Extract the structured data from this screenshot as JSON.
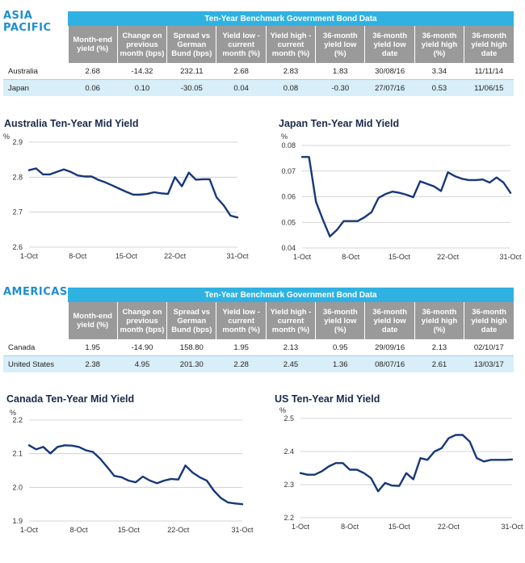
{
  "colors": {
    "accent": "#1e8fd0",
    "table_title_bg": "#2fb2e2",
    "table_header_bg": "#9a9a9a",
    "alt_row": "#d8eef8",
    "line": "#17377a"
  },
  "sections": [
    {
      "region_lines": [
        "ASIA",
        "PACIFIC"
      ],
      "table_title": "Ten-Year Benchmark Government Bond Data",
      "headers": [
        "Month-end yield (%)",
        "Change on previous month (bps)",
        "Spread vs German Bund (bps)",
        "Yield low - current month (%)",
        "Yield high - current month (%)",
        "36-month yield low (%)",
        "36-month yield low date",
        "36-month yield high (%)",
        "36-month yield high date"
      ],
      "rows": [
        {
          "name": "Australia",
          "cells": [
            "2.68",
            "-14.32",
            "232.11",
            "2.68",
            "2.83",
            "1.83",
            "30/08/16",
            "3.34",
            "11/11/14"
          ]
        },
        {
          "name": "Japan",
          "cells": [
            "0.06",
            "0.10",
            "-30.05",
            "0.04",
            "0.08",
            "-0.30",
            "27/07/16",
            "0.53",
            "11/06/15"
          ]
        }
      ]
    },
    {
      "region_lines": [
        "AMERICAS"
      ],
      "table_title": "Ten-Year Benchmark Government Bond Data",
      "headers": [
        "Month-end yield (%)",
        "Change on previous month (bps)",
        "Spread vs German Bund (bps)",
        "Yield low - current month (%)",
        "Yield high - current month (%)",
        "36-month yield low (%)",
        "36-month yield low date",
        "36-month yield high (%)",
        "36-month yield high date"
      ],
      "rows": [
        {
          "name": "Canada",
          "cells": [
            "1.95",
            "-14.90",
            "158.80",
            "1.95",
            "2.13",
            "0.95",
            "29/09/16",
            "2.13",
            "02/10/17"
          ]
        },
        {
          "name": "United States",
          "cells": [
            "2.38",
            "4.95",
            "201.30",
            "2.28",
            "2.45",
            "1.36",
            "08/07/16",
            "2.61",
            "13/03/17"
          ]
        }
      ]
    }
  ],
  "chart_data": [
    {
      "type": "line",
      "title": "Australia Ten-Year Mid Yield",
      "ylabel": "%",
      "ylim": [
        2.6,
        2.9
      ],
      "yticks": [
        "2.9",
        "2.8",
        "2.7",
        "2.6"
      ],
      "xticks": [
        "1-Oct",
        "8-Oct",
        "15-Oct",
        "22-Oct",
        "31-Oct"
      ],
      "xtick_days": [
        1,
        8,
        15,
        22,
        31
      ],
      "xlim": [
        1,
        31
      ],
      "x": [
        1,
        2,
        3,
        4,
        5,
        6,
        7,
        8,
        9,
        10,
        11,
        12,
        13,
        14,
        15,
        16,
        17,
        18,
        19,
        20,
        21,
        22,
        23,
        24,
        25,
        26,
        27,
        28,
        29,
        30,
        31
      ],
      "values": [
        2.82,
        2.825,
        2.808,
        2.808,
        2.815,
        2.822,
        2.815,
        2.805,
        2.802,
        2.802,
        2.792,
        2.785,
        2.776,
        2.767,
        2.758,
        2.75,
        2.75,
        2.752,
        2.757,
        2.754,
        2.752,
        2.8,
        2.774,
        2.813,
        2.793,
        2.794,
        2.794,
        2.742,
        2.72,
        2.69,
        2.685
      ]
    },
    {
      "type": "line",
      "title": "Japan Ten-Year Mid Yield",
      "ylabel": "%",
      "ylim": [
        0.04,
        0.08
      ],
      "yticks": [
        "0.08",
        "0.07",
        "0.06",
        "0.05",
        "0.04"
      ],
      "xticks": [
        "1-Oct",
        "8-Oct",
        "15-Oct",
        "22-Oct",
        "31-Oct"
      ],
      "xtick_days": [
        1,
        8,
        15,
        22,
        31
      ],
      "xlim": [
        1,
        31
      ],
      "x": [
        1,
        2,
        3,
        4,
        5,
        6,
        7,
        8,
        9,
        10,
        11,
        12,
        13,
        14,
        15,
        16,
        17,
        18,
        19,
        20,
        21,
        22,
        23,
        24,
        25,
        26,
        27,
        28,
        29,
        30,
        31
      ],
      "values": [
        0.0755,
        0.0755,
        0.058,
        0.051,
        0.0445,
        0.047,
        0.0505,
        0.0505,
        0.0505,
        0.052,
        0.054,
        0.0595,
        0.061,
        0.062,
        0.0615,
        0.0608,
        0.0598,
        0.066,
        0.065,
        0.064,
        0.0622,
        0.0695,
        0.068,
        0.067,
        0.0665,
        0.0665,
        0.0667,
        0.0655,
        0.0675,
        0.0655,
        0.0615
      ]
    },
    {
      "type": "line",
      "title": "Canada Ten-Year Mid Yield",
      "ylabel": "%",
      "ylim": [
        1.9,
        2.2
      ],
      "yticks": [
        "2.2",
        "2.1",
        "2.0",
        "1.9"
      ],
      "xticks": [
        "1-Oct",
        "8-Oct",
        "15-Oct",
        "22-Oct",
        "31-Oct"
      ],
      "xtick_days": [
        1,
        8,
        15,
        22,
        31
      ],
      "xlim": [
        1,
        31
      ],
      "x": [
        1,
        2,
        3,
        4,
        5,
        6,
        7,
        8,
        9,
        10,
        11,
        12,
        13,
        14,
        15,
        16,
        17,
        18,
        19,
        20,
        21,
        22,
        23,
        24,
        25,
        26,
        27,
        28,
        29,
        30,
        31
      ],
      "values": [
        2.125,
        2.113,
        2.12,
        2.101,
        2.12,
        2.125,
        2.124,
        2.12,
        2.11,
        2.105,
        2.085,
        2.06,
        2.034,
        2.03,
        2.02,
        2.015,
        2.032,
        2.02,
        2.012,
        2.02,
        2.025,
        2.023,
        2.065,
        2.044,
        2.03,
        2.02,
        1.99,
        1.968,
        1.955,
        1.952,
        1.95
      ]
    },
    {
      "type": "line",
      "title": "US Ten-Year Mid Yield",
      "ylabel": "%",
      "ylim": [
        2.2,
        2.5
      ],
      "yticks": [
        "2.5",
        "2.4",
        "2.3",
        "2.2"
      ],
      "xticks": [
        "1-Oct",
        "8-Oct",
        "15-Oct",
        "22-Oct",
        "31-Oct"
      ],
      "xtick_days": [
        1,
        8,
        15,
        22,
        31
      ],
      "xlim": [
        1,
        31
      ],
      "x": [
        1,
        2,
        3,
        4,
        5,
        6,
        7,
        8,
        9,
        10,
        11,
        12,
        13,
        14,
        15,
        16,
        17,
        18,
        19,
        20,
        21,
        22,
        23,
        24,
        25,
        26,
        27,
        28,
        29,
        30,
        31
      ],
      "values": [
        2.335,
        2.33,
        2.33,
        2.34,
        2.355,
        2.365,
        2.365,
        2.345,
        2.345,
        2.335,
        2.32,
        2.28,
        2.305,
        2.297,
        2.296,
        2.335,
        2.316,
        2.38,
        2.375,
        2.4,
        2.41,
        2.44,
        2.45,
        2.45,
        2.43,
        2.38,
        2.37,
        2.375,
        2.375,
        2.375,
        2.376
      ]
    }
  ]
}
